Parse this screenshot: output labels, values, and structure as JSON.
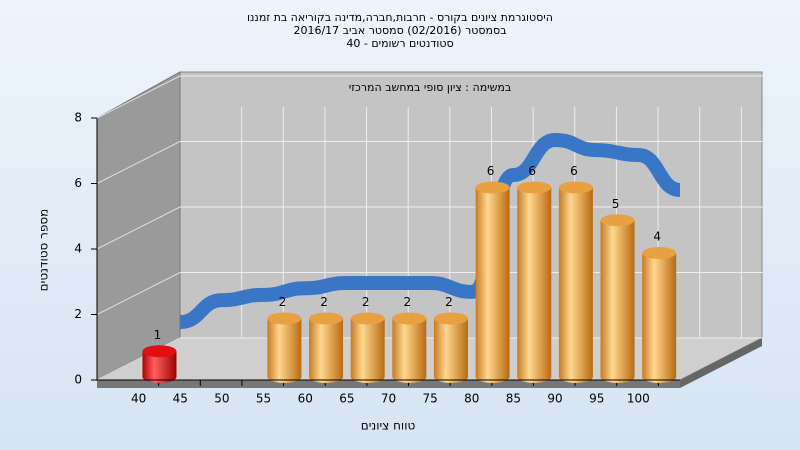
{
  "chart_data": {
    "type": "bar3d",
    "title": "היסטוגרמת ציונים בקורס - חרבות,חברה,מדינה בקוריאה בת זמננו",
    "subtitle": "בסמסטר  (02/2016)  סמסטר אביב 2016/17",
    "subtitle2": "סטודנטים רשומים - 40",
    "annotation": "במשימה : ציון סופי במחשב המרכזי",
    "x_label": "טווח ציונים",
    "y_label": "מספר סטודנטים",
    "x": [
      42.5,
      47.5,
      52.5,
      57.5,
      62.5,
      67.5,
      72.5,
      77.5,
      82.5,
      87.5,
      92.5,
      97.5,
      102.5
    ],
    "values": [
      1,
      0,
      0,
      2,
      2,
      2,
      2,
      2,
      6,
      6,
      6,
      5,
      4
    ],
    "colors": [
      "#e01010",
      "#e8a040",
      "#e8a040",
      "#e8a040",
      "#e8a040",
      "#e8a040",
      "#e8a040",
      "#e8a040",
      "#e8a040",
      "#e8a040",
      "#e8a040",
      "#e8a040",
      "#e8a040"
    ],
    "trend": {
      "color": "#3a76c6",
      "x": [
        45,
        50,
        55,
        60,
        65,
        70,
        75,
        80,
        85,
        90,
        95,
        100,
        105
      ],
      "values": [
        1.77,
        2.44,
        2.6,
        2.8,
        2.96,
        2.96,
        2.96,
        2.69,
        6.26,
        7.33,
        7.02,
        6.87,
        5.8
      ]
    },
    "xlim": [
      35,
      105
    ],
    "xticks": [
      40,
      45,
      50,
      55,
      60,
      65,
      70,
      75,
      80,
      85,
      90,
      95,
      100
    ],
    "ylim": [
      0,
      8
    ],
    "yticks": [
      0,
      2,
      4,
      6,
      8
    ],
    "grid": true
  }
}
